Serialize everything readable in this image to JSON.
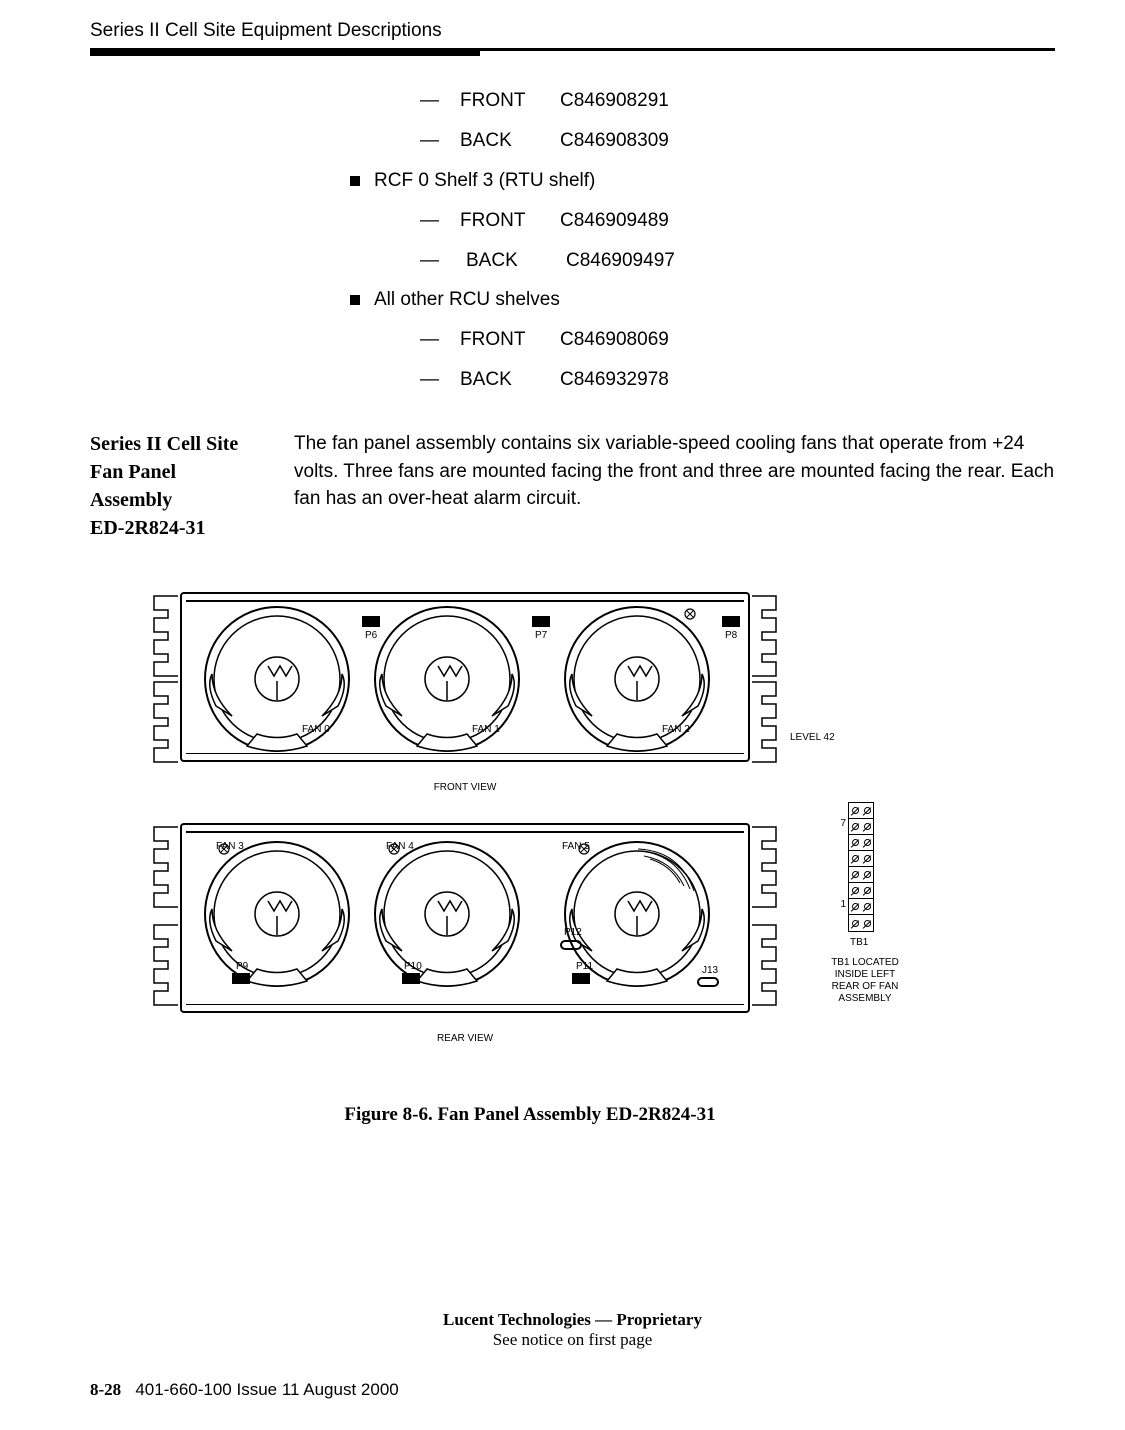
{
  "header": {
    "title": "Series II Cell Site Equipment Descriptions"
  },
  "parts_list": {
    "shelf_extra": [
      {
        "side": "FRONT",
        "code": "C846908291"
      },
      {
        "side": "BACK",
        "code": "C846908309"
      }
    ],
    "rcf_shelf3_title": "RCF 0 Shelf 3 (RTU  shelf)",
    "rcf_shelf3": [
      {
        "side": "FRONT",
        "code": "C846909489"
      },
      {
        "side": "BACK",
        "code": "C846909497"
      }
    ],
    "all_other_title": "All other RCU  shelves",
    "all_other": [
      {
        "side": "FRONT",
        "code": "C846908069"
      },
      {
        "side": "BACK",
        "code": "C846932978"
      }
    ]
  },
  "section": {
    "heading_l1": "Series II Cell Site",
    "heading_l2": "Fan Panel",
    "heading_l3": "Assembly",
    "heading_l4": "ED-2R824-31",
    "body": "The fan panel assembly contains six variable-speed cooling fans that operate from +24 volts. Three fans are mounted facing the front and three are mounted facing the rear. Each fan has an over-heat alarm circuit."
  },
  "figure": {
    "front_view_label": "FRONT VIEW",
    "rear_view_label": "REAR VIEW",
    "level_label": "LEVEL 42",
    "front_fans": [
      {
        "name": "FAN 0",
        "conn": "P6"
      },
      {
        "name": "FAN 1",
        "conn": "P7"
      },
      {
        "name": "FAN 2",
        "conn": "P8"
      }
    ],
    "rear_fans": [
      {
        "name": "FAN 3",
        "conn": "P9"
      },
      {
        "name": "FAN 4",
        "conn": "P10"
      },
      {
        "name": "FAN 5",
        "conn": "P11"
      }
    ],
    "extra_conns": {
      "p12": "P12",
      "j13": "J13"
    },
    "tb1_label": "TB1",
    "tb1_note_l1": "TB1 LOCATED",
    "tb1_note_l2": "INSIDE LEFT",
    "tb1_note_l3": "REAR OF FAN",
    "tb1_note_l4": "ASSEMBLY",
    "tb1_num_top": "7",
    "tb1_num_bottom": "1",
    "caption": "Figure 8-6.      Fan Panel Assembly ED-2R824-31"
  },
  "footer": {
    "prop_bold": "Lucent Technologies — Proprietary",
    "prop_note": "See notice on first page",
    "page": "8-28",
    "docref": "401-660-100 Issue 11    August 2000"
  },
  "style": {
    "fan_positions_x": [
      20,
      190,
      380
    ],
    "rear_fan_positions_x": [
      20,
      190,
      380
    ],
    "tb1_rows": 8
  }
}
